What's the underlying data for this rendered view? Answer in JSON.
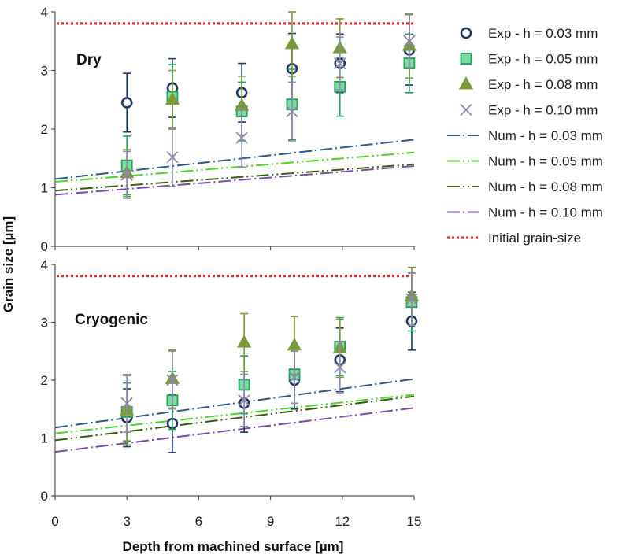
{
  "chart_data": {
    "type": "scatter",
    "xlabel": "Depth from machined surface [µm]",
    "ylabel": "Grain size [µm]",
    "x_ticks": [
      "0",
      "3",
      "6",
      "9",
      "12",
      "15"
    ],
    "y_ticks": [
      "0",
      "1",
      "2",
      "3",
      "4"
    ],
    "xlim": [
      0,
      15
    ],
    "ylim": [
      0,
      4
    ],
    "legend_position": "right",
    "initial_grain_size": 3.8,
    "legend": [
      {
        "name": "Exp - h = 0.03 mm",
        "kind": "circle",
        "color": "#1f3864"
      },
      {
        "name": "Exp - h = 0.05 mm",
        "kind": "square",
        "color": "#3cb878"
      },
      {
        "name": "Exp - h = 0.08 mm",
        "kind": "triangle",
        "color": "#7a9a3a"
      },
      {
        "name": "Exp - h = 0.10 mm",
        "kind": "cross",
        "color": "#8e88b2"
      },
      {
        "name": "Num - h = 0.03 mm",
        "kind": "line",
        "color": "#2e5a8a",
        "dash": "16 4 2 4"
      },
      {
        "name": "Num - h = 0.05 mm",
        "kind": "line",
        "color": "#4cd42c",
        "dash": "16 4 2 4 2 4"
      },
      {
        "name": "Num - h = 0.08 mm",
        "kind": "line",
        "color": "#3a5a10",
        "dash": "16 4 2 4 2 4"
      },
      {
        "name": "Num - h = 0.10 mm",
        "kind": "line",
        "color": "#7a4aa8",
        "dash": "16 4 2 4"
      },
      {
        "name": "Initial grain-size",
        "kind": "dotted",
        "color": "#e03030"
      }
    ],
    "panels": [
      {
        "label": "Dry",
        "series": [
          {
            "legend_index": 0,
            "points": [
              {
                "x": 3,
                "y": 2.45,
                "err": 0.5
              },
              {
                "x": 4.9,
                "y": 2.7,
                "err": 0.5
              },
              {
                "x": 7.8,
                "y": 2.62,
                "err": 0.5
              },
              {
                "x": 9.9,
                "y": 3.03,
                "err": 0.6
              },
              {
                "x": 11.9,
                "y": 3.12,
                "err": 0.5
              },
              {
                "x": 14.8,
                "y": 3.35,
                "err": 0.6
              }
            ]
          },
          {
            "legend_index": 1,
            "points": [
              {
                "x": 3,
                "y": 1.38,
                "err": 0.5
              },
              {
                "x": 4.9,
                "y": 2.55,
                "err": 0.55
              },
              {
                "x": 7.8,
                "y": 2.3,
                "err": 0.5
              },
              {
                "x": 9.9,
                "y": 2.42,
                "err": 0.6
              },
              {
                "x": 11.9,
                "y": 2.72,
                "err": 0.5
              },
              {
                "x": 14.8,
                "y": 3.12,
                "err": 0.5
              }
            ]
          },
          {
            "legend_index": 2,
            "points": [
              {
                "x": 3,
                "y": 1.25,
                "err": 0.4
              },
              {
                "x": 4.9,
                "y": 2.5,
                "err": 0.5
              },
              {
                "x": 7.8,
                "y": 2.4,
                "err": 0.5
              },
              {
                "x": 9.9,
                "y": 3.45,
                "err": 0.55
              },
              {
                "x": 11.9,
                "y": 3.38,
                "err": 0.5
              },
              {
                "x": 14.8,
                "y": 3.42,
                "err": 0.55
              }
            ]
          },
          {
            "legend_index": 3,
            "points": [
              {
                "x": 3,
                "y": 1.22,
                "err": 0.4
              },
              {
                "x": 4.9,
                "y": 1.52,
                "err": 0.5
              },
              {
                "x": 7.8,
                "y": 1.85,
                "err": 0.5
              },
              {
                "x": 9.9,
                "y": 2.3,
                "err": 0.5
              },
              {
                "x": 11.9,
                "y": 3.12,
                "err": 0.45
              },
              {
                "x": 14.8,
                "y": 3.5,
                "err": 0.45
              }
            ]
          }
        ],
        "num_lines": [
          {
            "legend_index": 4,
            "x": [
              0,
              15
            ],
            "y": [
              1.15,
              1.82
            ]
          },
          {
            "legend_index": 5,
            "x": [
              0,
              15
            ],
            "y": [
              1.1,
              1.6
            ]
          },
          {
            "legend_index": 6,
            "x": [
              0,
              15
            ],
            "y": [
              0.95,
              1.4
            ]
          },
          {
            "legend_index": 7,
            "x": [
              0,
              15
            ],
            "y": [
              0.88,
              1.37
            ]
          }
        ]
      },
      {
        "label": "Cryogenic",
        "series": [
          {
            "legend_index": 0,
            "points": [
              {
                "x": 3,
                "y": 1.35,
                "err": 0.5
              },
              {
                "x": 4.9,
                "y": 1.25,
                "err": 0.5
              },
              {
                "x": 7.9,
                "y": 1.6,
                "err": 0.5
              },
              {
                "x": 10,
                "y": 2.0,
                "err": 0.5
              },
              {
                "x": 11.9,
                "y": 2.35,
                "err": 0.55
              },
              {
                "x": 14.9,
                "y": 3.02,
                "err": 0.5
              }
            ]
          },
          {
            "legend_index": 1,
            "points": [
              {
                "x": 3,
                "y": 1.45,
                "err": 0.5
              },
              {
                "x": 4.9,
                "y": 1.65,
                "err": 0.5
              },
              {
                "x": 7.9,
                "y": 1.92,
                "err": 0.5
              },
              {
                "x": 10,
                "y": 2.1,
                "err": 0.5
              },
              {
                "x": 11.9,
                "y": 2.58,
                "err": 0.5
              },
              {
                "x": 14.9,
                "y": 3.35,
                "err": 0.5
              }
            ]
          },
          {
            "legend_index": 2,
            "points": [
              {
                "x": 3,
                "y": 1.48,
                "err": 0.6
              },
              {
                "x": 4.9,
                "y": 2.02,
                "err": 0.5
              },
              {
                "x": 7.9,
                "y": 2.65,
                "err": 0.5
              },
              {
                "x": 10,
                "y": 2.6,
                "err": 0.5
              },
              {
                "x": 11.9,
                "y": 2.55,
                "err": 0.5
              },
              {
                "x": 14.9,
                "y": 3.45,
                "err": 0.5
              }
            ]
          },
          {
            "legend_index": 3,
            "points": [
              {
                "x": 3,
                "y": 1.6,
                "err": 0.5
              },
              {
                "x": 4.9,
                "y": 2.0,
                "err": 0.5
              },
              {
                "x": 7.9,
                "y": 1.65,
                "err": 0.45
              },
              {
                "x": 10,
                "y": 2.05,
                "err": 0.45
              },
              {
                "x": 11.9,
                "y": 2.22,
                "err": 0.45
              },
              {
                "x": 14.9,
                "y": 3.4,
                "err": 0.45
              }
            ]
          }
        ],
        "num_lines": [
          {
            "legend_index": 4,
            "x": [
              0,
              15
            ],
            "y": [
              1.18,
              2.02
            ]
          },
          {
            "legend_index": 5,
            "x": [
              0,
              15
            ],
            "y": [
              1.08,
              1.75
            ]
          },
          {
            "legend_index": 6,
            "x": [
              0,
              15
            ],
            "y": [
              0.96,
              1.72
            ]
          },
          {
            "legend_index": 7,
            "x": [
              0,
              15
            ],
            "y": [
              0.76,
              1.52
            ]
          }
        ]
      }
    ]
  }
}
